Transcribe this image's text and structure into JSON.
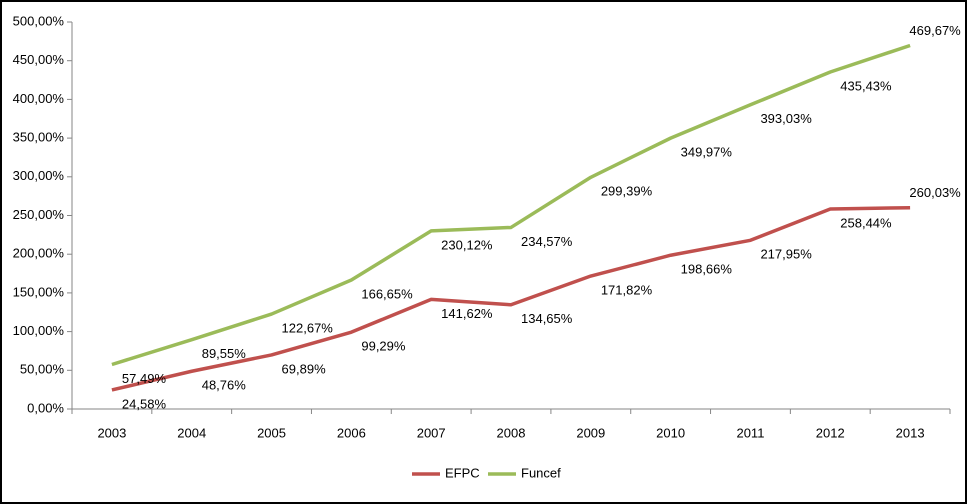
{
  "chart_data": {
    "type": "line",
    "categories": [
      "2003",
      "2004",
      "2005",
      "2006",
      "2007",
      "2008",
      "2009",
      "2010",
      "2011",
      "2012",
      "2013"
    ],
    "series": [
      {
        "name": "EFPC",
        "color": "#c0504d",
        "values": [
          24.58,
          48.76,
          69.89,
          99.29,
          141.62,
          134.65,
          171.82,
          198.66,
          217.95,
          258.44,
          260.03
        ],
        "value_labels": [
          "24,58%",
          "48,76%",
          "69,89%",
          "99,29%",
          "141,62%",
          "134,65%",
          "171,82%",
          "198,66%",
          "217,95%",
          "258,44%",
          "260,03%"
        ]
      },
      {
        "name": "Funcef",
        "color": "#9bbb59",
        "values": [
          57.49,
          89.55,
          122.67,
          166.65,
          230.12,
          234.57,
          299.39,
          349.97,
          393.03,
          435.43,
          469.67
        ],
        "value_labels": [
          "57,49%",
          "89,55%",
          "122,67%",
          "166,65%",
          "230,12%",
          "234,57%",
          "299,39%",
          "349,97%",
          "393,03%",
          "435,43%",
          "469,67%"
        ]
      }
    ],
    "ylim": [
      0,
      500
    ],
    "yticks": [
      {
        "value": 0,
        "label": "0,00%"
      },
      {
        "value": 50,
        "label": "50,00%"
      },
      {
        "value": 100,
        "label": "100,00%"
      },
      {
        "value": 150,
        "label": "150,00%"
      },
      {
        "value": 200,
        "label": "200,00%"
      },
      {
        "value": 250,
        "label": "250,00%"
      },
      {
        "value": 300,
        "label": "300,00%"
      },
      {
        "value": 350,
        "label": "350,00%"
      },
      {
        "value": 400,
        "label": "400,00%"
      },
      {
        "value": 450,
        "label": "450,00%"
      },
      {
        "value": 500,
        "label": "500,00%"
      }
    ],
    "grid": false,
    "legend": "bottom"
  }
}
